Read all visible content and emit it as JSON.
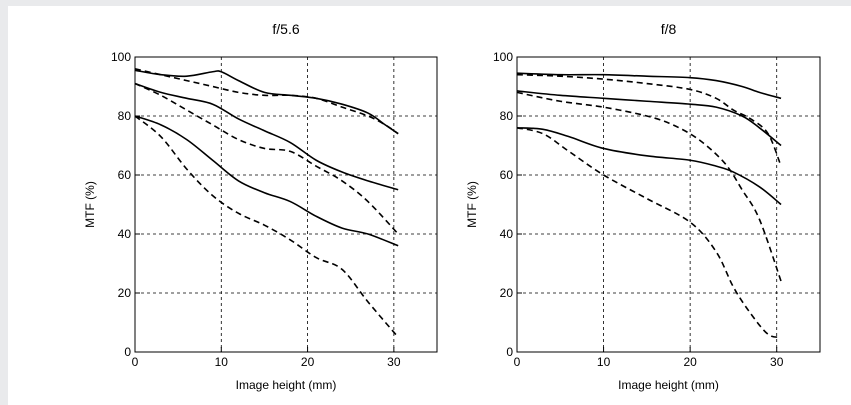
{
  "chart_data": [
    {
      "type": "line",
      "title": "f/5.6",
      "xlabel": "Image height (mm)",
      "ylabel": "MTF (%)",
      "xlim": [
        0,
        35
      ],
      "ylim": [
        0,
        100
      ],
      "xticks": [
        0,
        10,
        20,
        30
      ],
      "yticks": [
        0,
        20,
        40,
        60,
        80,
        100
      ],
      "grid": true,
      "series": [
        {
          "style": "solid",
          "x": [
            0,
            3,
            6,
            9,
            10,
            12,
            15,
            18,
            21,
            24,
            27,
            29,
            30.5
          ],
          "y": [
            95.5,
            94,
            93.5,
            95,
            95,
            92,
            88,
            87,
            86,
            84,
            81,
            77,
            74
          ]
        },
        {
          "style": "dashed",
          "x": [
            0,
            3,
            6,
            9,
            12,
            15,
            18,
            21,
            24,
            27,
            29,
            30.5
          ],
          "y": [
            96,
            94,
            92,
            90,
            88,
            87,
            87,
            86,
            83,
            80,
            77,
            74
          ]
        },
        {
          "style": "solid",
          "x": [
            0,
            3,
            6,
            9,
            12,
            15,
            18,
            21,
            24,
            27,
            30.5
          ],
          "y": [
            91,
            88,
            86,
            84,
            79,
            75,
            71,
            65,
            61,
            58,
            55
          ]
        },
        {
          "style": "dashed",
          "x": [
            0,
            3,
            6,
            9,
            12,
            15,
            18,
            21,
            24,
            27,
            30.5
          ],
          "y": [
            91,
            87,
            82,
            77,
            72,
            69,
            68,
            63,
            58,
            51,
            40
          ]
        },
        {
          "style": "solid",
          "x": [
            0,
            3,
            6,
            9,
            12,
            15,
            18,
            21,
            24,
            27,
            30.5
          ],
          "y": [
            80,
            77,
            72,
            65,
            58,
            54,
            51,
            46,
            42,
            40,
            36
          ]
        },
        {
          "style": "dashed",
          "x": [
            0,
            3,
            6,
            9,
            12,
            15,
            18,
            21,
            24,
            27,
            30.5
          ],
          "y": [
            80,
            73,
            62,
            53,
            47,
            43,
            38,
            32,
            28,
            17,
            5
          ]
        }
      ]
    },
    {
      "type": "line",
      "title": "f/8",
      "xlabel": "Image height (mm)",
      "ylabel": "MTF (%)",
      "xlim": [
        0,
        35
      ],
      "ylim": [
        0,
        100
      ],
      "xticks": [
        0,
        10,
        20,
        30
      ],
      "yticks": [
        0,
        20,
        40,
        60,
        80,
        100
      ],
      "grid": true,
      "series": [
        {
          "style": "solid",
          "x": [
            0,
            5,
            10,
            15,
            20,
            23,
            26,
            28,
            30.5
          ],
          "y": [
            94.5,
            94,
            94,
            93.5,
            93,
            92,
            90,
            88,
            86
          ]
        },
        {
          "style": "dashed",
          "x": [
            0,
            5,
            10,
            15,
            20,
            23,
            25,
            27,
            29,
            30.5
          ],
          "y": [
            94,
            93.5,
            92.5,
            91,
            89,
            86,
            82,
            79,
            74,
            63
          ]
        },
        {
          "style": "solid",
          "x": [
            0,
            5,
            10,
            15,
            20,
            23,
            26,
            28,
            30.5
          ],
          "y": [
            88.5,
            87,
            86,
            85,
            84,
            83,
            80,
            76,
            70
          ]
        },
        {
          "style": "dashed",
          "x": [
            0,
            5,
            10,
            15,
            18,
            21,
            24,
            26,
            28,
            30.5
          ],
          "y": [
            88,
            85,
            83,
            80,
            77,
            72,
            64,
            55,
            45,
            24
          ]
        },
        {
          "style": "solid",
          "x": [
            0,
            3,
            6,
            10,
            15,
            20,
            23,
            25,
            28,
            30.5
          ],
          "y": [
            76,
            75.5,
            73,
            69,
            66.5,
            65,
            63,
            61,
            56,
            50
          ]
        },
        {
          "style": "dashed",
          "x": [
            0,
            3,
            6,
            10,
            15,
            20,
            23,
            25,
            27,
            29,
            30.5
          ],
          "y": [
            76,
            74,
            68,
            60,
            52,
            44,
            34,
            22,
            13,
            6,
            5
          ]
        }
      ]
    }
  ]
}
